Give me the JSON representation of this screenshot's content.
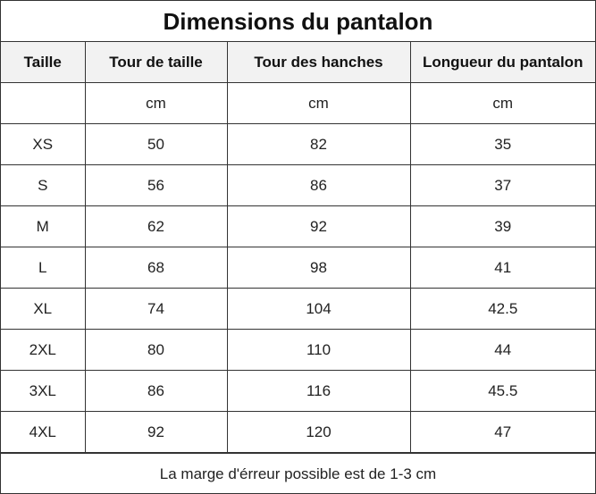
{
  "title": "Dimensions du pantalon",
  "headers": [
    "Taille",
    "Tour de taille",
    "Tour des hanches",
    "Longueur du pantalon"
  ],
  "units": [
    "",
    "cm",
    "cm",
    "cm"
  ],
  "rows": [
    [
      "XS",
      "50",
      "82",
      "35"
    ],
    [
      "S",
      "56",
      "86",
      "37"
    ],
    [
      "M",
      "62",
      "92",
      "39"
    ],
    [
      "L",
      "68",
      "98",
      "41"
    ],
    [
      "XL",
      "74",
      "104",
      "42.5"
    ],
    [
      "2XL",
      "80",
      "110",
      "44"
    ],
    [
      "3XL",
      "86",
      "116",
      "45.5"
    ],
    [
      "4XL",
      "92",
      "120",
      "47"
    ]
  ],
  "note": "La marge d'érreur possible est de 1-3 cm",
  "colors": {
    "border": "#333333",
    "header_bg": "#f2f2f2",
    "text": "#222222"
  }
}
